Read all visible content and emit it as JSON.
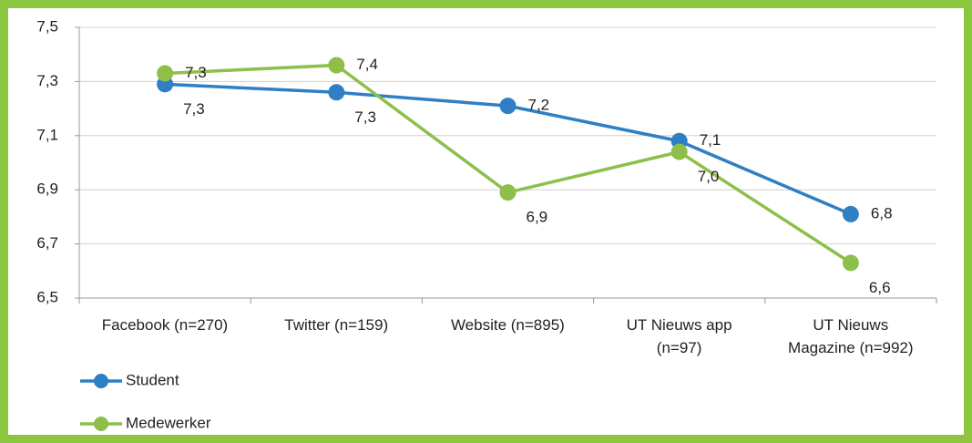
{
  "chart_data": {
    "type": "line",
    "categories": [
      "Facebook  (n=270)",
      "Twitter (n=159)",
      "Website (n=895)",
      "UT Nieuws app\n(n=97)",
      "UT Nieuws\nMagazine (n=992)"
    ],
    "series": [
      {
        "name": "Student",
        "color": "#2e7fc4",
        "values": [
          7.29,
          7.26,
          7.21,
          7.08,
          6.81
        ],
        "value_labels": [
          "7,3",
          "7,3",
          "7,2",
          "7,1",
          "6,8"
        ]
      },
      {
        "name": "Medewerker",
        "color": "#8dbf4a",
        "values": [
          7.33,
          7.36,
          6.89,
          7.04,
          6.63
        ],
        "value_labels": [
          "7,3",
          "7,4",
          "6,9",
          "7,0",
          "6,6"
        ]
      }
    ],
    "ylim": [
      6.5,
      7.5
    ],
    "yticks": [
      {
        "value": 6.5,
        "label": "6,5"
      },
      {
        "value": 6.7,
        "label": "6,7"
      },
      {
        "value": 6.9,
        "label": "6,9"
      },
      {
        "value": 7.1,
        "label": "7,1"
      },
      {
        "value": 7.3,
        "label": "7,3"
      },
      {
        "value": 7.5,
        "label": "7,5"
      }
    ],
    "grid": true,
    "legend": "bottom-left"
  }
}
